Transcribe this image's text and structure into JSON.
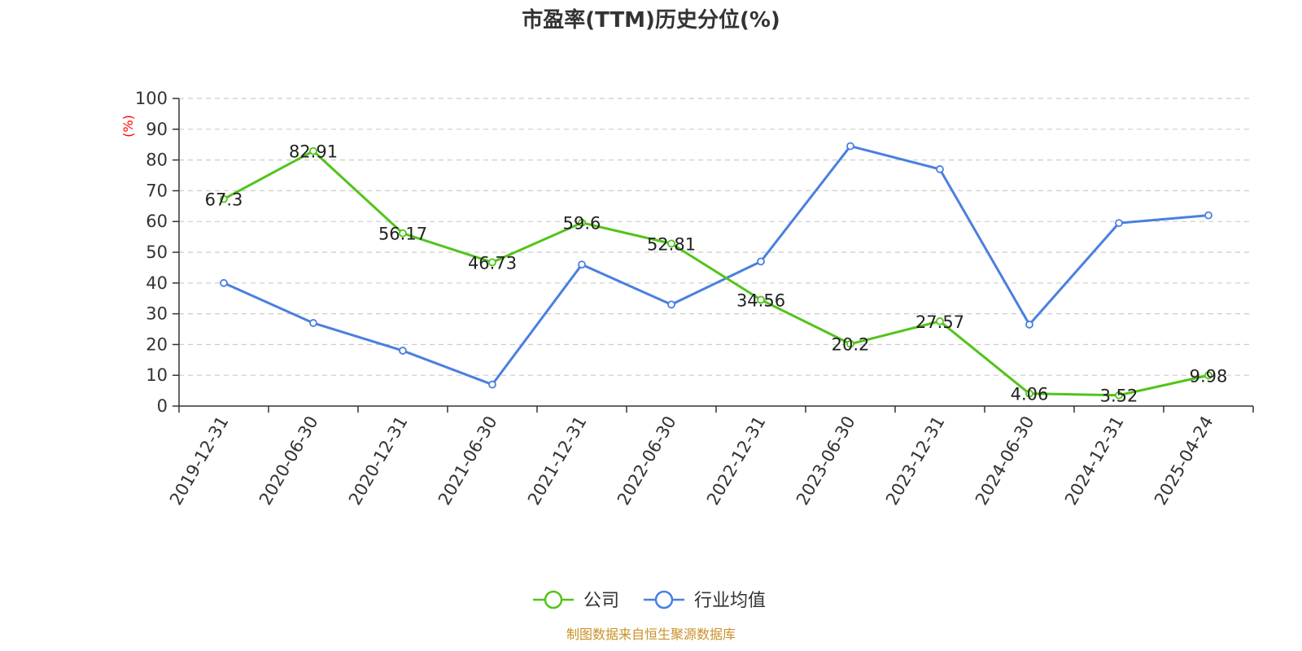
{
  "chart_data": {
    "type": "line",
    "title": "市盈率(TTM)历史分位(%)",
    "ylabel": "(%)",
    "ylim": [
      0,
      100
    ],
    "yticks": [
      0,
      10,
      20,
      30,
      40,
      50,
      60,
      70,
      80,
      90,
      100
    ],
    "grid": true,
    "legend_position": "bottom-center",
    "categories": [
      "2019-12-31",
      "2020-06-30",
      "2020-12-31",
      "2021-06-30",
      "2021-12-31",
      "2022-06-30",
      "2022-12-31",
      "2023-06-30",
      "2023-12-31",
      "2024-06-30",
      "2024-12-31",
      "2025-04-24"
    ],
    "series": [
      {
        "name": "公司",
        "color": "#52c41a",
        "show_labels": true,
        "values": [
          67.3,
          82.91,
          56.17,
          46.73,
          59.6,
          52.81,
          34.56,
          20.2,
          27.57,
          4.06,
          3.52,
          9.98
        ],
        "labels": [
          "67.3",
          "82.91",
          "56.17",
          "46.73",
          "59.6",
          "52.81",
          "34.56",
          "20.2",
          "27.57",
          "4.06",
          "3.52",
          "9.98"
        ]
      },
      {
        "name": "行业均值",
        "color": "#4a7fe0",
        "show_labels": false,
        "values": [
          40,
          27,
          18,
          7,
          46,
          33,
          47,
          84.5,
          77,
          26.5,
          59.5,
          62
        ]
      }
    ]
  },
  "source": "制图数据来自恒生聚源数据库",
  "colors": {
    "ylabel": "#ff0000",
    "source": "#c8922a",
    "axis": "#333333",
    "grid": "#cccccc"
  }
}
